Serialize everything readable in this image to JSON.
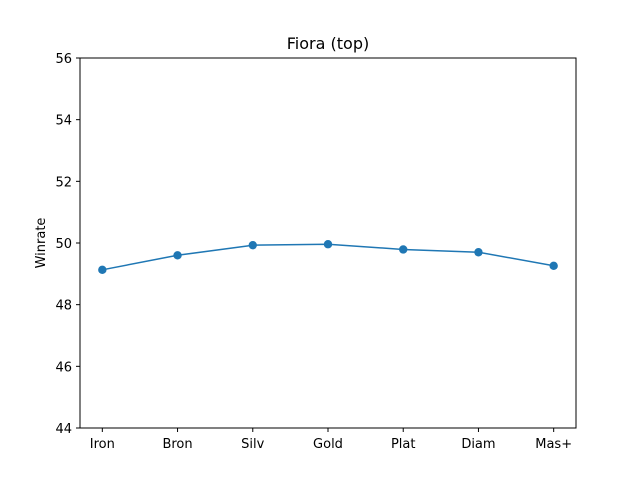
{
  "chart_data": {
    "type": "line",
    "title": "Fiora (top)",
    "xlabel": "",
    "ylabel": "Winrate",
    "categories": [
      "Iron",
      "Bron",
      "Silv",
      "Gold",
      "Plat",
      "Diam",
      "Mas+"
    ],
    "series": [
      {
        "values": [
          49.13,
          49.6,
          49.93,
          49.96,
          49.79,
          49.7,
          49.26
        ],
        "color": "#1f77b4",
        "marker": "circle"
      }
    ],
    "ylim": [
      44,
      56
    ],
    "yticks": [
      44,
      46,
      48,
      50,
      52,
      54,
      56
    ],
    "grid": false,
    "legend": "none"
  }
}
